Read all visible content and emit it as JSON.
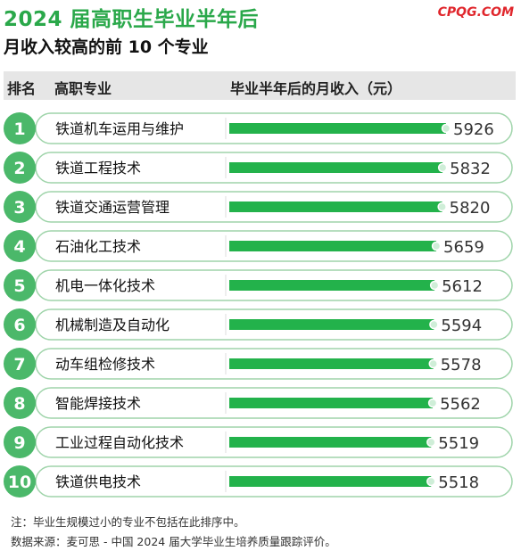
{
  "title": "2024 届高职生毕业半年后",
  "subtitle": "月收入较高的前 10 个专业",
  "brand": "CPQG.COM",
  "header": {
    "rank": "排名",
    "major": "高职专业",
    "income": "毕业半年后的月收入（元）"
  },
  "notes": {
    "note": "注：毕业生规模过小的专业不包括在此排序中。",
    "source": "数据来源：麦可思 - 中国 2024 届大学毕业生培养质量跟踪评价。"
  },
  "colors": {
    "accent": "#2aa84a",
    "bar": "#23b24b",
    "badge": "#4bb86a",
    "rowBorder": "#9fd4aa"
  },
  "chart_data": {
    "type": "bar",
    "orientation": "horizontal",
    "categories": [
      "铁道机车运用与维护",
      "铁道工程技术",
      "铁道交通运营管理",
      "石油化工技术",
      "机电一体化技术",
      "机械制造及自动化",
      "动车组检修技术",
      "智能焊接技术",
      "工业过程自动化技术",
      "铁道供电技术"
    ],
    "ranks": [
      "1",
      "2",
      "3",
      "4",
      "5",
      "6",
      "7",
      "8",
      "9",
      "10"
    ],
    "values": [
      5926,
      5832,
      5820,
      5659,
      5612,
      5594,
      5578,
      5562,
      5519,
      5518
    ],
    "xlim": [
      0,
      5926
    ]
  }
}
